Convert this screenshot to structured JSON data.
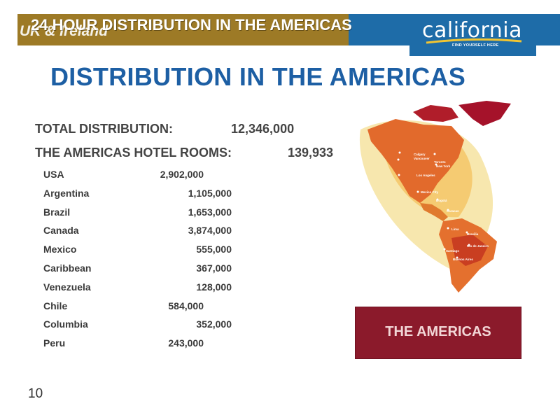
{
  "header": {
    "region": "UK & Ireland",
    "title": "24 HOUR DISTRIBUTION IN THE AMERICAS",
    "logo": {
      "wordmark": "california",
      "tagline": "FIND YOURSELF HERE"
    }
  },
  "title": "DISTRIBUTION IN THE AMERICAS",
  "summary": {
    "total_label": "TOTAL DISTRIBUTION:",
    "total_value": "12,346,000",
    "hotel_label": "THE AMERICAS HOTEL ROOMS:",
    "hotel_value": "139,933"
  },
  "countries": [
    {
      "name": "USA",
      "value": "2,902,000"
    },
    {
      "name": "Argentina",
      "value": "1,105,000"
    },
    {
      "name": "Brazil",
      "value": "1,653,000"
    },
    {
      "name": "Canada",
      "value": "3,874,000"
    },
    {
      "name": "Mexico",
      "value": "555,000"
    },
    {
      "name": "Caribbean",
      "value": "367,000"
    },
    {
      "name": "Venezuela",
      "value": "128,000"
    },
    {
      "name": "Chile",
      "value": "584,000"
    },
    {
      "name": "Columbia",
      "value": "352,000"
    },
    {
      "name": "Peru",
      "value": "243,000"
    }
  ],
  "map_cities": [
    "Calgary",
    "Vancouver",
    "Toronto",
    "New York",
    "Los Angeles",
    "Mexico City",
    "Bogotá",
    "Caracas",
    "Lima",
    "Brasilia",
    "Rio de Janeiro",
    "Santiago",
    "Buenos Aires"
  ],
  "region_box_label": "THE AMERICAS",
  "slide_number": "10",
  "colors": {
    "gold": "#9d7a26",
    "blue": "#1e6ca8",
    "title_blue": "#1d5fa4",
    "maroon": "#8b1a2b"
  }
}
